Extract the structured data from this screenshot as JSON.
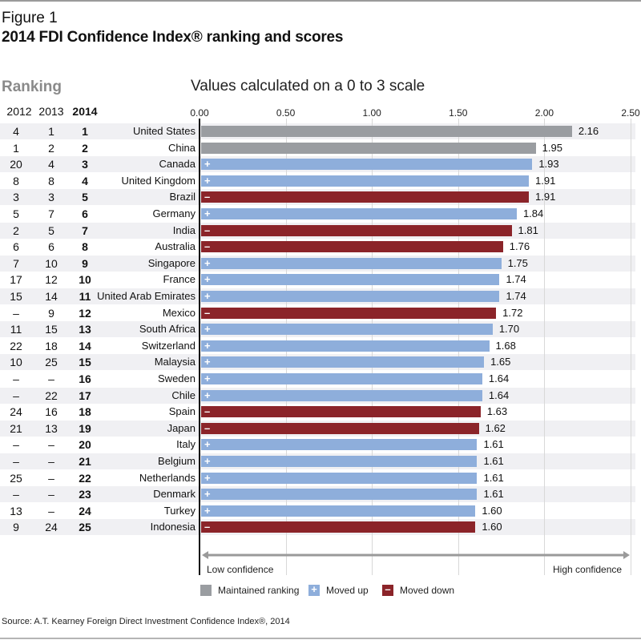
{
  "figure_label": "Figure 1",
  "title": "2014 FDI Confidence Index® ranking and scores",
  "ranking_header": "Ranking",
  "rank_columns": [
    "2012",
    "2013",
    "2014"
  ],
  "scale_note": "Values calculated on a 0 to 3 scale",
  "colors": {
    "maintained": "#9a9da1",
    "moved_up": "#8eaedb",
    "moved_down": "#8b2429",
    "row_shade": "#f0f0f3"
  },
  "legend": [
    {
      "key": "maintained",
      "label": "Maintained ranking",
      "sign": ""
    },
    {
      "key": "moved_up",
      "label": "Moved up",
      "sign": "+"
    },
    {
      "key": "moved_down",
      "label": "Moved down",
      "sign": "–"
    }
  ],
  "confidence_axis": {
    "low": "Low confidence",
    "high": "High confidence"
  },
  "source": "Source: A.T. Kearney Foreign Direct Investment Confidence Index®, 2014",
  "chart_data": {
    "type": "bar",
    "orientation": "horizontal",
    "title": "2014 FDI Confidence Index® ranking and scores",
    "xlabel": "Values calculated on a 0 to 3 scale",
    "xlim": [
      0,
      2.5
    ],
    "xticks": [
      0,
      0.5,
      1.0,
      1.5,
      2.0,
      2.5
    ],
    "xtick_labels": [
      "0.00",
      "0.50",
      "1.00",
      "1.50",
      "2.00",
      "2.50"
    ],
    "grid": true,
    "legend_position": "bottom",
    "rows": [
      {
        "country": "United States",
        "r2012": "4",
        "r2013": "1",
        "r2014": "1",
        "value": 2.16,
        "status": "maintained"
      },
      {
        "country": "China",
        "r2012": "1",
        "r2013": "2",
        "r2014": "2",
        "value": 1.95,
        "status": "maintained"
      },
      {
        "country": "Canada",
        "r2012": "20",
        "r2013": "4",
        "r2014": "3",
        "value": 1.93,
        "status": "moved_up"
      },
      {
        "country": "United Kingdom",
        "r2012": "8",
        "r2013": "8",
        "r2014": "4",
        "value": 1.91,
        "status": "moved_up"
      },
      {
        "country": "Brazil",
        "r2012": "3",
        "r2013": "3",
        "r2014": "5",
        "value": 1.91,
        "status": "moved_down"
      },
      {
        "country": "Germany",
        "r2012": "5",
        "r2013": "7",
        "r2014": "6",
        "value": 1.84,
        "status": "moved_up"
      },
      {
        "country": "India",
        "r2012": "2",
        "r2013": "5",
        "r2014": "7",
        "value": 1.81,
        "status": "moved_down"
      },
      {
        "country": "Australia",
        "r2012": "6",
        "r2013": "6",
        "r2014": "8",
        "value": 1.76,
        "status": "moved_down"
      },
      {
        "country": "Singapore",
        "r2012": "7",
        "r2013": "10",
        "r2014": "9",
        "value": 1.75,
        "status": "moved_up"
      },
      {
        "country": "France",
        "r2012": "17",
        "r2013": "12",
        "r2014": "10",
        "value": 1.74,
        "status": "moved_up"
      },
      {
        "country": "United Arab Emirates",
        "r2012": "15",
        "r2013": "14",
        "r2014": "11",
        "value": 1.74,
        "status": "moved_up"
      },
      {
        "country": "Mexico",
        "r2012": "–",
        "r2013": "9",
        "r2014": "12",
        "value": 1.72,
        "status": "moved_down"
      },
      {
        "country": "South Africa",
        "r2012": "11",
        "r2013": "15",
        "r2014": "13",
        "value": 1.7,
        "status": "moved_up"
      },
      {
        "country": "Switzerland",
        "r2012": "22",
        "r2013": "18",
        "r2014": "14",
        "value": 1.68,
        "status": "moved_up"
      },
      {
        "country": "Malaysia",
        "r2012": "10",
        "r2013": "25",
        "r2014": "15",
        "value": 1.65,
        "status": "moved_up"
      },
      {
        "country": "Sweden",
        "r2012": "–",
        "r2013": "–",
        "r2014": "16",
        "value": 1.64,
        "status": "moved_up"
      },
      {
        "country": "Chile",
        "r2012": "–",
        "r2013": "22",
        "r2014": "17",
        "value": 1.64,
        "status": "moved_up"
      },
      {
        "country": "Spain",
        "r2012": "24",
        "r2013": "16",
        "r2014": "18",
        "value": 1.63,
        "status": "moved_down"
      },
      {
        "country": "Japan",
        "r2012": "21",
        "r2013": "13",
        "r2014": "19",
        "value": 1.62,
        "status": "moved_down"
      },
      {
        "country": "Italy",
        "r2012": "–",
        "r2013": "–",
        "r2014": "20",
        "value": 1.61,
        "status": "moved_up"
      },
      {
        "country": "Belgium",
        "r2012": "–",
        "r2013": "–",
        "r2014": "21",
        "value": 1.61,
        "status": "moved_up"
      },
      {
        "country": "Netherlands",
        "r2012": "25",
        "r2013": "–",
        "r2014": "22",
        "value": 1.61,
        "status": "moved_up"
      },
      {
        "country": "Denmark",
        "r2012": "–",
        "r2013": "–",
        "r2014": "23",
        "value": 1.61,
        "status": "moved_up"
      },
      {
        "country": "Turkey",
        "r2012": "13",
        "r2013": "–",
        "r2014": "24",
        "value": 1.6,
        "status": "moved_up"
      },
      {
        "country": "Indonesia",
        "r2012": "9",
        "r2013": "24",
        "r2014": "25",
        "value": 1.6,
        "status": "moved_down"
      }
    ]
  }
}
